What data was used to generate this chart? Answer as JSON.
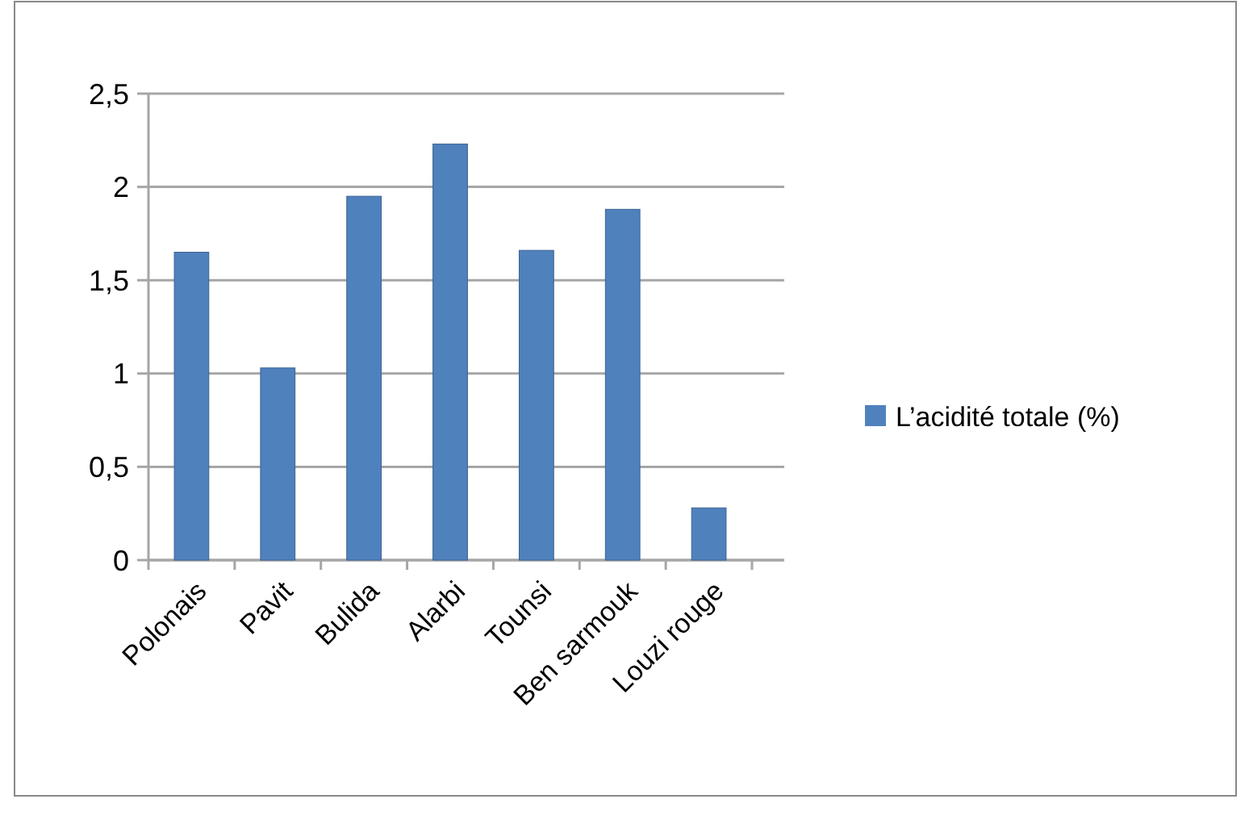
{
  "chart_data": {
    "type": "bar",
    "categories": [
      "Polonais",
      "Pavit",
      "Bulida",
      "Alarbi",
      "Tounsi",
      "Ben sarmouk",
      "Louzi rouge"
    ],
    "series": [
      {
        "name": "L’acidité totale (%)",
        "color": "#4f81bd",
        "values": [
          1.65,
          1.03,
          1.95,
          2.23,
          1.66,
          1.88,
          0.28
        ]
      }
    ],
    "ylim": [
      0,
      2.5
    ],
    "yticks": [
      0,
      {
        "value": 0.5,
        "label": "0,5"
      },
      1,
      {
        "value": 1.5,
        "label": "1,5"
      },
      2,
      {
        "value": 2.5,
        "label": "2,5"
      }
    ],
    "grid": "y",
    "legend": "right"
  }
}
